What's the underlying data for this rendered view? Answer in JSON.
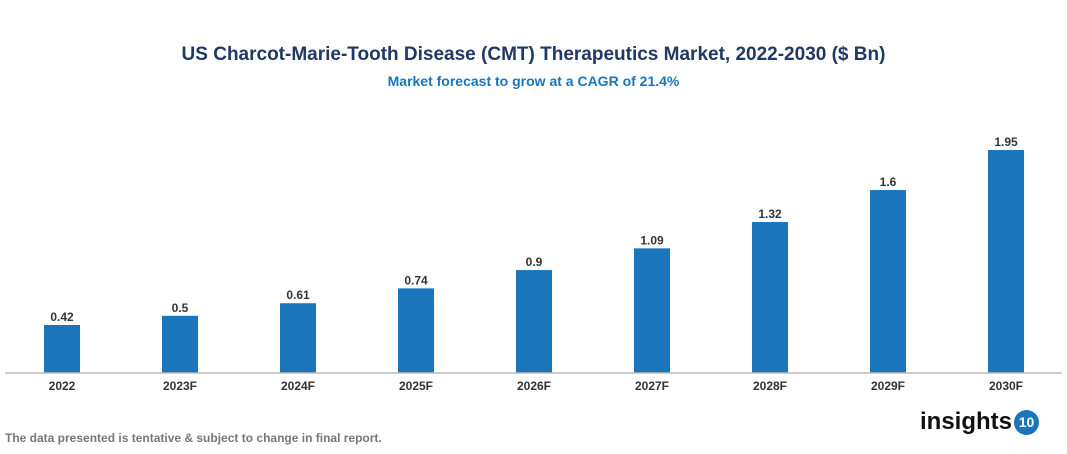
{
  "chart_data": {
    "type": "bar",
    "title": "US Charcot-Marie-Tooth Disease (CMT) Therapeutics Market, 2022-2030 ($ Bn)",
    "subtitle": "Market forecast to grow at a CAGR of 21.4%",
    "categories": [
      "2022",
      "2023F",
      "2024F",
      "2025F",
      "2026F",
      "2027F",
      "2028F",
      "2029F",
      "2030F"
    ],
    "values": [
      0.42,
      0.5,
      0.61,
      0.74,
      0.9,
      1.09,
      1.32,
      1.6,
      1.95
    ],
    "xlabel": "",
    "ylabel": "",
    "ylim": [
      0,
      1.95
    ],
    "grid": false,
    "bar_color": "#1a75bb"
  },
  "footer": {
    "note": "The data presented is tentative & subject to change in final report."
  },
  "logo": {
    "text": "insights",
    "badge": "10"
  }
}
